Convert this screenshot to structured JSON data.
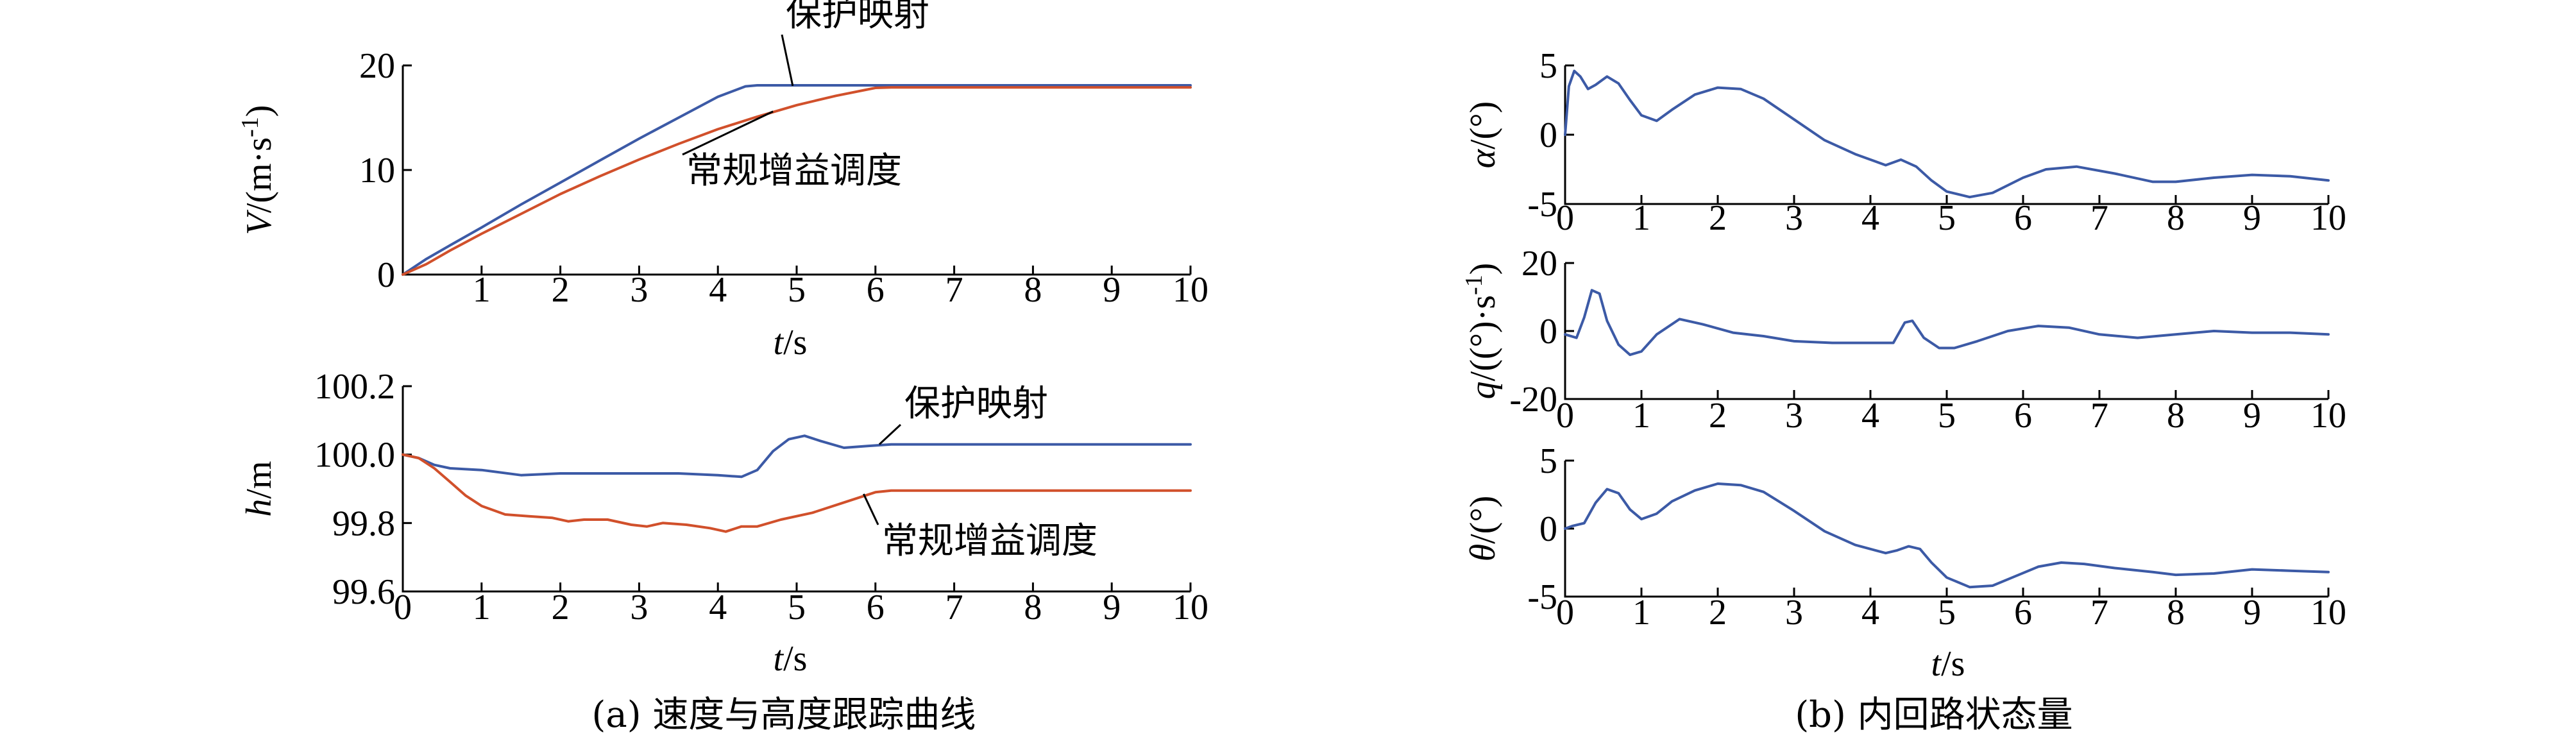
{
  "colors": {
    "blue": "#3c5aa6",
    "red": "#d1502b",
    "axis": "#000000"
  },
  "captions": {
    "a": "(a) 速度与高度跟踪曲线",
    "b": "(b) 内回路状态量"
  },
  "chart_data": [
    {
      "id": "a1",
      "type": "line",
      "ylabel_main": "V",
      "ylabel_unit": "/(m·s",
      "ylabel_sup": "-1",
      "ylabel_close": ")",
      "xlabel_main": "t",
      "xlabel_unit": "/s",
      "xlim": [
        0,
        10
      ],
      "ylim": [
        0,
        20
      ],
      "xticks": [
        1,
        2,
        3,
        4,
        5,
        6,
        7,
        8,
        9,
        10
      ],
      "xtick_labels": [
        "1",
        "2",
        "3",
        "4",
        "5",
        "6",
        "7",
        "8",
        "9",
        "10"
      ],
      "yticks": [
        0,
        10,
        20
      ],
      "ytick_labels": [
        "0",
        "10",
        "20"
      ],
      "annotations": [
        {
          "text": "保护映射",
          "series": 0,
          "point": [
            4.95,
            18.05
          ]
        },
        {
          "text": "常规增益调度",
          "series": 1,
          "point": [
            4.7,
            15.6
          ]
        }
      ],
      "series": [
        {
          "color": "blue",
          "x": [
            0,
            0.3,
            0.6,
            1,
            1.5,
            2,
            2.5,
            3,
            3.5,
            4,
            4.35,
            4.5,
            4.7,
            5,
            6,
            7,
            8,
            9,
            10
          ],
          "y": [
            0,
            1.5,
            2.8,
            4.5,
            6.7,
            8.8,
            10.9,
            13.0,
            15.0,
            17.0,
            18.0,
            18.1,
            18.1,
            18.1,
            18.1,
            18.1,
            18.1,
            18.1,
            18.1
          ]
        },
        {
          "color": "red",
          "x": [
            0,
            0.3,
            0.6,
            1,
            1.5,
            2,
            2.5,
            3,
            3.5,
            4,
            4.5,
            5,
            5.5,
            6,
            6.2,
            7,
            8,
            9,
            10
          ],
          "y": [
            0,
            1.0,
            2.3,
            3.9,
            5.8,
            7.7,
            9.4,
            11.0,
            12.5,
            13.9,
            15.1,
            16.2,
            17.1,
            17.85,
            17.9,
            17.9,
            17.9,
            17.9,
            17.9
          ]
        }
      ]
    },
    {
      "id": "a2",
      "type": "line",
      "ylabel_main": "h",
      "ylabel_unit": "/m",
      "xlabel_main": "t",
      "xlabel_unit": "/s",
      "xlim": [
        0,
        10
      ],
      "ylim": [
        99.6,
        100.2
      ],
      "xticks": [
        0,
        1,
        2,
        3,
        4,
        5,
        6,
        7,
        8,
        9,
        10
      ],
      "xtick_labels": [
        "0",
        "1",
        "2",
        "3",
        "4",
        "5",
        "6",
        "7",
        "8",
        "9",
        "10"
      ],
      "yticks": [
        99.6,
        99.8,
        100.0,
        100.2
      ],
      "ytick_labels": [
        "99.6",
        "99.8",
        "100.0",
        "100.2"
      ],
      "annotations": [
        {
          "text": "保护映射",
          "series": 0,
          "point": [
            6.05,
            100.03
          ]
        },
        {
          "text": "常规增益调度",
          "series": 1,
          "point": [
            5.85,
            99.885
          ]
        }
      ],
      "series": [
        {
          "color": "blue",
          "x": [
            0,
            0.2,
            0.4,
            0.6,
            1,
            1.5,
            2,
            2.5,
            3,
            3.5,
            4,
            4.3,
            4.5,
            4.7,
            4.9,
            5.1,
            5.3,
            5.6,
            5.9,
            6.2,
            6.6,
            7,
            8,
            9,
            10
          ],
          "y": [
            100.0,
            99.99,
            99.97,
            99.96,
            99.955,
            99.94,
            99.945,
            99.945,
            99.945,
            99.945,
            99.94,
            99.935,
            99.955,
            100.01,
            100.045,
            100.055,
            100.04,
            100.02,
            100.025,
            100.03,
            100.03,
            100.03,
            100.03,
            100.03,
            100.03
          ]
        },
        {
          "color": "red",
          "x": [
            0,
            0.2,
            0.4,
            0.6,
            0.8,
            1,
            1.3,
            1.6,
            1.9,
            2.1,
            2.3,
            2.6,
            2.9,
            3.1,
            3.3,
            3.6,
            3.9,
            4.1,
            4.3,
            4.5,
            4.8,
            5.2,
            5.6,
            6,
            6.2,
            7,
            8,
            9,
            10
          ],
          "y": [
            100.0,
            99.99,
            99.96,
            99.92,
            99.88,
            99.85,
            99.825,
            99.82,
            99.815,
            99.805,
            99.81,
            99.81,
            99.795,
            99.79,
            99.8,
            99.795,
            99.785,
            99.775,
            99.79,
            99.79,
            99.81,
            99.83,
            99.86,
            99.89,
            99.895,
            99.895,
            99.895,
            99.895,
            99.895
          ]
        }
      ]
    },
    {
      "id": "b1",
      "type": "line",
      "ylabel_main": "α",
      "ylabel_unit": "/(°)",
      "xlim": [
        0,
        10
      ],
      "ylim": [
        -5,
        5
      ],
      "xticks": [
        0,
        1,
        2,
        3,
        4,
        5,
        6,
        7,
        8,
        9,
        10
      ],
      "xtick_labels": [
        "0",
        "1",
        "2",
        "3",
        "4",
        "5",
        "6",
        "7",
        "8",
        "9",
        "10"
      ],
      "yticks": [
        -5,
        0,
        5
      ],
      "ytick_labels": [
        "-5",
        "0",
        "5"
      ],
      "series": [
        {
          "color": "blue",
          "x": [
            0,
            0.05,
            0.12,
            0.2,
            0.3,
            0.4,
            0.55,
            0.7,
            0.85,
            1,
            1.2,
            1.4,
            1.7,
            2,
            2.3,
            2.6,
            3,
            3.4,
            3.8,
            4.2,
            4.4,
            4.6,
            4.8,
            5,
            5.3,
            5.6,
            6,
            6.3,
            6.7,
            7.2,
            7.7,
            8,
            8.5,
            9,
            9.5,
            10
          ],
          "y": [
            0,
            3.5,
            4.6,
            4.2,
            3.3,
            3.6,
            4.2,
            3.7,
            2.5,
            1.4,
            1.0,
            1.8,
            2.9,
            3.4,
            3.3,
            2.6,
            1.1,
            -0.4,
            -1.4,
            -2.2,
            -1.8,
            -2.3,
            -3.3,
            -4.1,
            -4.5,
            -4.2,
            -3.1,
            -2.5,
            -2.3,
            -2.8,
            -3.4,
            -3.4,
            -3.1,
            -2.9,
            -3.0,
            -3.3
          ]
        }
      ]
    },
    {
      "id": "b2",
      "type": "line",
      "ylabel_main": "q",
      "ylabel_unit": "/((°)·s",
      "ylabel_sup": "-1",
      "ylabel_close": ")",
      "xlim": [
        0,
        10
      ],
      "ylim": [
        -20,
        20
      ],
      "xticks": [
        0,
        1,
        2,
        3,
        4,
        5,
        6,
        7,
        8,
        9,
        10
      ],
      "xtick_labels": [
        "0",
        "1",
        "2",
        "3",
        "4",
        "5",
        "6",
        "7",
        "8",
        "9",
        "10"
      ],
      "yticks": [
        -20,
        0,
        20
      ],
      "ytick_labels": [
        "-20",
        "0",
        "20"
      ],
      "series": [
        {
          "color": "blue",
          "x": [
            0,
            0.15,
            0.25,
            0.35,
            0.45,
            0.55,
            0.7,
            0.85,
            1,
            1.2,
            1.5,
            1.8,
            2.2,
            2.6,
            3,
            3.5,
            4,
            4.3,
            4.45,
            4.55,
            4.7,
            4.9,
            5.1,
            5.4,
            5.8,
            6.2,
            6.6,
            7,
            7.5,
            8,
            8.5,
            9,
            9.5,
            10
          ],
          "y": [
            -1,
            -2,
            4,
            12,
            11,
            3,
            -4,
            -7,
            -6,
            -1,
            3.5,
            2,
            -0.5,
            -1.5,
            -3,
            -3.5,
            -3.5,
            -3.5,
            2.5,
            3,
            -2,
            -5,
            -5,
            -3,
            0,
            1.5,
            1,
            -1,
            -2,
            -1,
            0,
            -0.5,
            -0.5,
            -1
          ]
        }
      ]
    },
    {
      "id": "b3",
      "type": "line",
      "ylabel_main": "θ",
      "ylabel_unit": "/(°)",
      "xlabel_main": "t",
      "xlabel_unit": "/s",
      "xlim": [
        0,
        10
      ],
      "ylim": [
        -5,
        5
      ],
      "xticks": [
        0,
        1,
        2,
        3,
        4,
        5,
        6,
        7,
        8,
        9,
        10
      ],
      "xtick_labels": [
        "0",
        "1",
        "2",
        "3",
        "4",
        "5",
        "6",
        "7",
        "8",
        "9",
        "10"
      ],
      "yticks": [
        -5,
        0,
        5
      ],
      "ytick_labels": [
        "-5",
        "0",
        "5"
      ],
      "series": [
        {
          "color": "blue",
          "x": [
            0,
            0.1,
            0.25,
            0.4,
            0.55,
            0.7,
            0.85,
            1,
            1.2,
            1.4,
            1.7,
            2,
            2.3,
            2.6,
            3,
            3.4,
            3.8,
            4.2,
            4.35,
            4.5,
            4.65,
            4.8,
            5,
            5.3,
            5.6,
            5.9,
            6.2,
            6.5,
            6.8,
            7.2,
            7.7,
            8,
            8.5,
            9,
            9.5,
            10
          ],
          "y": [
            0,
            0.2,
            0.4,
            1.9,
            2.9,
            2.6,
            1.4,
            0.7,
            1.1,
            2.0,
            2.8,
            3.3,
            3.2,
            2.7,
            1.3,
            -0.2,
            -1.2,
            -1.8,
            -1.6,
            -1.3,
            -1.5,
            -2.5,
            -3.6,
            -4.3,
            -4.2,
            -3.5,
            -2.8,
            -2.5,
            -2.6,
            -2.9,
            -3.2,
            -3.4,
            -3.3,
            -3.0,
            -3.1,
            -3.2
          ]
        }
      ]
    }
  ]
}
